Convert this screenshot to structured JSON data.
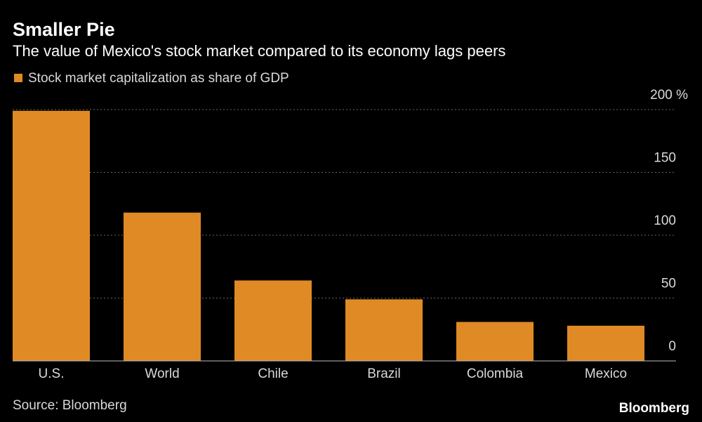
{
  "chart_data": {
    "type": "bar",
    "title": "Smaller Pie",
    "subtitle": "The value of Mexico's stock market compared to its economy lags peers",
    "categories": [
      "U.S.",
      "World",
      "Chile",
      "Brazil",
      "Colombia",
      "Mexico"
    ],
    "series": [
      {
        "name": "Stock market capitalization as share of GDP",
        "color": "#e08a26",
        "values": [
          199,
          118,
          64,
          49,
          31,
          28
        ]
      }
    ],
    "ylim": [
      0,
      200
    ],
    "yticks": [
      0,
      50,
      100,
      150,
      {
        "value": 200,
        "label": "200 %"
      }
    ],
    "grid": true,
    "source": "Source: Bloomberg",
    "logo": "Bloomberg"
  }
}
